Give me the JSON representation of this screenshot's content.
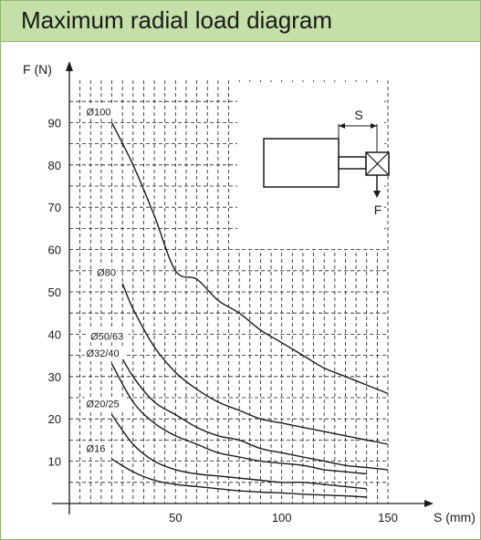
{
  "header": {
    "title": "Maximum radial load diagram"
  },
  "colors": {
    "header_bg": "#c4dfa7",
    "border": "#8db86a",
    "ink": "#1a1a1a",
    "grid": "#1a1a1a"
  },
  "chart_data": {
    "type": "line",
    "title": "Maximum radial load diagram",
    "xlabel": "S (mm)",
    "ylabel": "F (N)",
    "xlim": [
      0,
      150
    ],
    "ylim": [
      0,
      100
    ],
    "x_ticks": [
      50,
      100,
      150
    ],
    "y_ticks": [
      10,
      20,
      30,
      40,
      50,
      60,
      70,
      80,
      90
    ],
    "x_tick_labels": [
      "50",
      "100",
      "150"
    ],
    "y_tick_labels": [
      "10",
      "20",
      "30",
      "40",
      "50",
      "60",
      "70",
      "80",
      "90"
    ],
    "grid": true,
    "grid_style": "dashed",
    "legend": "none",
    "series": [
      {
        "name": "Ø100",
        "x": [
          20,
          30,
          40,
          50,
          60,
          70,
          80,
          90,
          100,
          110,
          120,
          130,
          140,
          150
        ],
        "y": [
          90,
          80,
          68,
          55,
          53,
          48,
          45,
          41,
          38,
          35,
          32,
          30,
          28,
          26
        ]
      },
      {
        "name": "Ø80",
        "x": [
          25,
          30,
          40,
          50,
          60,
          70,
          80,
          90,
          100,
          110,
          120,
          130,
          140,
          150
        ],
        "y": [
          52,
          46,
          37,
          31,
          27,
          24,
          22,
          20,
          19,
          18,
          17,
          16,
          15,
          14
        ]
      },
      {
        "name": "Ø50/63",
        "x": [
          22,
          30,
          40,
          50,
          60,
          70,
          80,
          90,
          100,
          110,
          120,
          130,
          140,
          150
        ],
        "y": [
          37,
          30,
          24,
          21,
          18,
          16,
          15,
          13,
          12,
          11,
          10,
          9,
          8.5,
          8
        ]
      },
      {
        "name": "Ø32/40",
        "x": [
          20,
          30,
          40,
          50,
          60,
          70,
          80,
          90,
          100,
          110,
          120,
          130,
          140
        ],
        "y": [
          33,
          24,
          19,
          16,
          14,
          12,
          11,
          10,
          9.5,
          9,
          8,
          7.5,
          7
        ]
      },
      {
        "name": "Ø20/25",
        "x": [
          20,
          30,
          40,
          50,
          60,
          70,
          80,
          90,
          100,
          110,
          120,
          130,
          140
        ],
        "y": [
          21,
          14,
          10,
          8,
          7,
          6.5,
          6,
          5.5,
          5,
          5,
          4.5,
          4,
          3.5
        ]
      },
      {
        "name": "Ø16",
        "x": [
          20,
          30,
          40,
          50,
          60,
          70,
          80,
          90,
          100,
          110,
          120,
          130,
          140
        ],
        "y": [
          10.5,
          7.5,
          5.5,
          4.5,
          4,
          3.5,
          3,
          2.7,
          2.5,
          2.2,
          2,
          1.8,
          1.5
        ]
      }
    ],
    "inset_diagram": {
      "labels": [
        "S",
        "F"
      ]
    }
  }
}
